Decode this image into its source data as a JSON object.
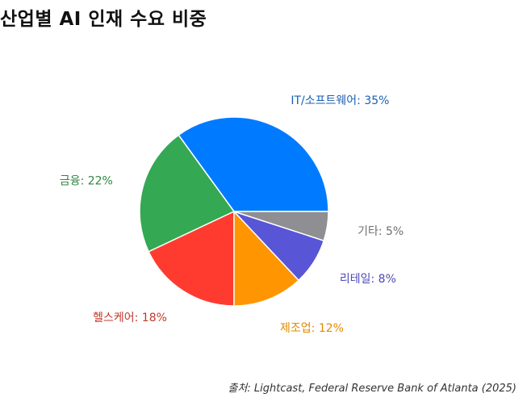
{
  "chart_data": {
    "type": "pie",
    "title": "산업별 AI 인재 수요 비중",
    "categories": [
      "IT/소프트웨어",
      "금융",
      "헬스케어",
      "제조업",
      "리테일",
      "기타"
    ],
    "values": [
      35,
      22,
      18,
      12,
      8,
      5
    ],
    "labels": [
      "IT/소프트웨어: 35%",
      "금융: 22%",
      "헬스케어: 18%",
      "제조업: 12%",
      "리테일: 8%",
      "기타: 5%"
    ],
    "colors": [
      "#007bff",
      "#34a853",
      "#ff3b30",
      "#ff9500",
      "#5856d6",
      "#8e8e93"
    ],
    "label_colors": [
      "#1a5fb4",
      "#2e8540",
      "#c0392b",
      "#e08a00",
      "#4b4ab8",
      "#707070"
    ],
    "legend": "none"
  },
  "source": "출처: Lightcast, Federal Reserve Bank of Atlanta (2025)"
}
